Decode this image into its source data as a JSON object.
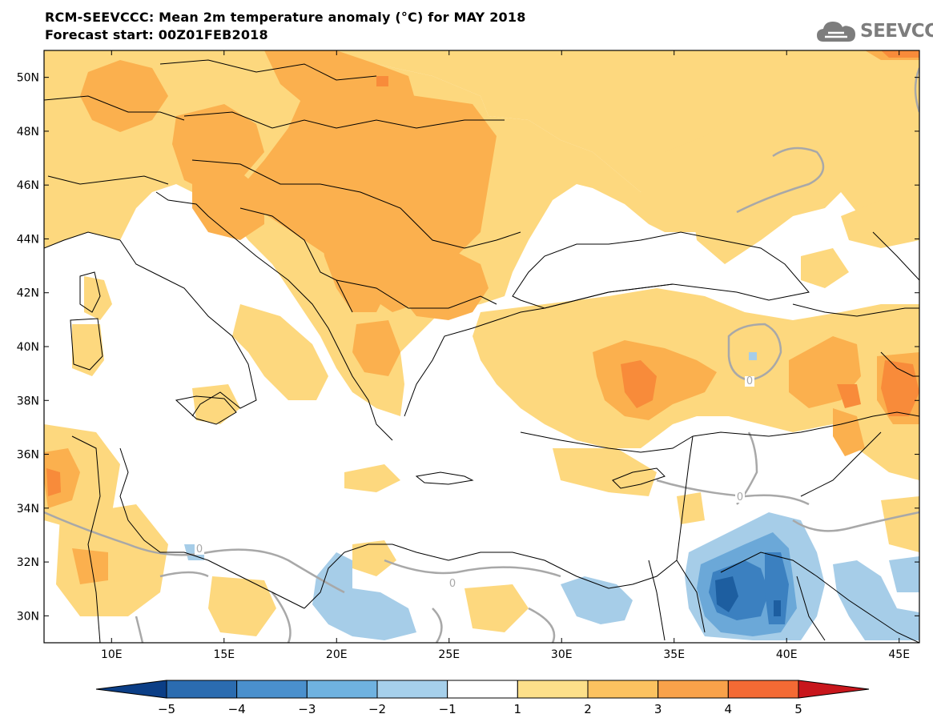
{
  "header": {
    "title": "RCM-SEEVCCC: Mean 2m temperature anomaly (°C) for MAY 2018",
    "subtitle": "Forecast start: 00Z01FEB2018"
  },
  "logo": {
    "text": "SEEVCCC",
    "icon": "cloud-icon"
  },
  "map": {
    "lat_labels": [
      "50N",
      "48N",
      "46N",
      "44N",
      "42N",
      "40N",
      "38N",
      "36N",
      "34N",
      "32N",
      "30N"
    ],
    "lon_labels": [
      "10E",
      "15E",
      "20E",
      "25E",
      "30E",
      "35E",
      "40E",
      "45E"
    ],
    "contour_label": "0",
    "lon_range": [
      7,
      45.9
    ],
    "lat_range": [
      29,
      51
    ]
  },
  "colorbar": {
    "ticks": [
      "-5",
      "-4",
      "-3",
      "-2",
      "-1",
      "1",
      "2",
      "3",
      "4",
      "5"
    ],
    "colors": [
      "#0b3e86",
      "#2b6cb0",
      "#4a90cd",
      "#6fb2e0",
      "#a6d0eb",
      "#ffffff",
      "#fde08a",
      "#fcc260",
      "#f9a24a",
      "#f46a34",
      "#e8281e",
      "#c8161c"
    ]
  },
  "colors": {
    "sea": "#ffffff",
    "anom_1_2": "#fdd87e",
    "anom_2_3": "#fbb04e",
    "anom_3_4": "#f88b3a",
    "anom_4_5": "#f15a2a",
    "anom_m1_m2": "#a6cde8",
    "anom_m2_m3": "#6ba8d8",
    "anom_m3_m4": "#3b80c0",
    "anom_m4_m5": "#1d5ea0",
    "contour": "#a8a8a8",
    "border": "#000000"
  }
}
